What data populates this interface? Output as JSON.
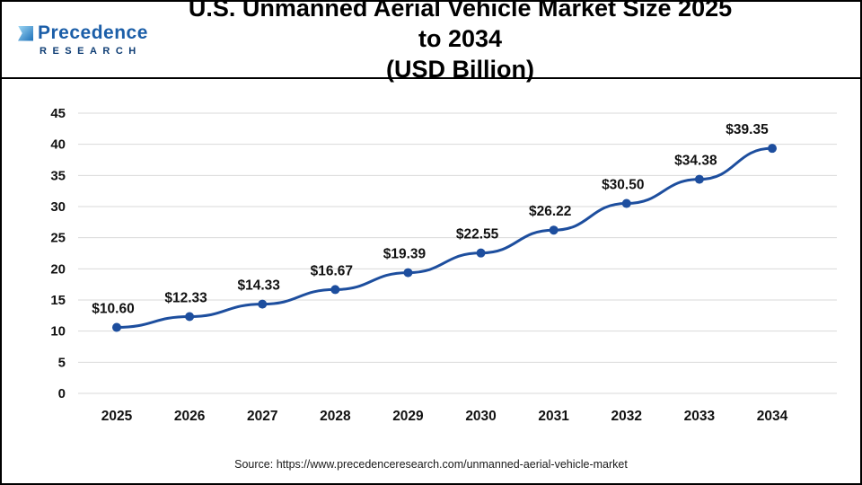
{
  "header": {
    "logo_name": "Precedence",
    "logo_sub": "RESEARCH",
    "title_line1": "U.S. Unmanned Aerial Vehicle Market Size 2025 to 2034",
    "title_line2": "(USD Billion)"
  },
  "footer": {
    "source": "Source: https://www.precedenceresearch.com/unmanned-aerial-vehicle-market"
  },
  "colors": {
    "line": "#1d4e9e",
    "point": "#1d4e9e",
    "grid": "#d9d9d9",
    "axis_text": "#111111",
    "label_text": "#111111"
  },
  "chart_data": {
    "type": "line",
    "title": "U.S. Unmanned Aerial Vehicle Market Size 2025 to 2034 (USD Billion)",
    "categories": [
      "2025",
      "2026",
      "2027",
      "2028",
      "2029",
      "2030",
      "2031",
      "2032",
      "2033",
      "2034"
    ],
    "values": [
      10.6,
      12.33,
      14.33,
      16.67,
      19.39,
      22.55,
      26.22,
      30.5,
      34.38,
      39.35
    ],
    "data_labels": [
      "$10.60",
      "$12.33",
      "$14.33",
      "$16.67",
      "$19.39",
      "$22.55",
      "$26.22",
      "$30.50",
      "$34.38",
      "$39.35"
    ],
    "xlabel": "",
    "ylabel": "",
    "ylim": [
      0,
      45
    ],
    "ytick_step": 5,
    "grid": "horizontal",
    "legend": "none"
  }
}
